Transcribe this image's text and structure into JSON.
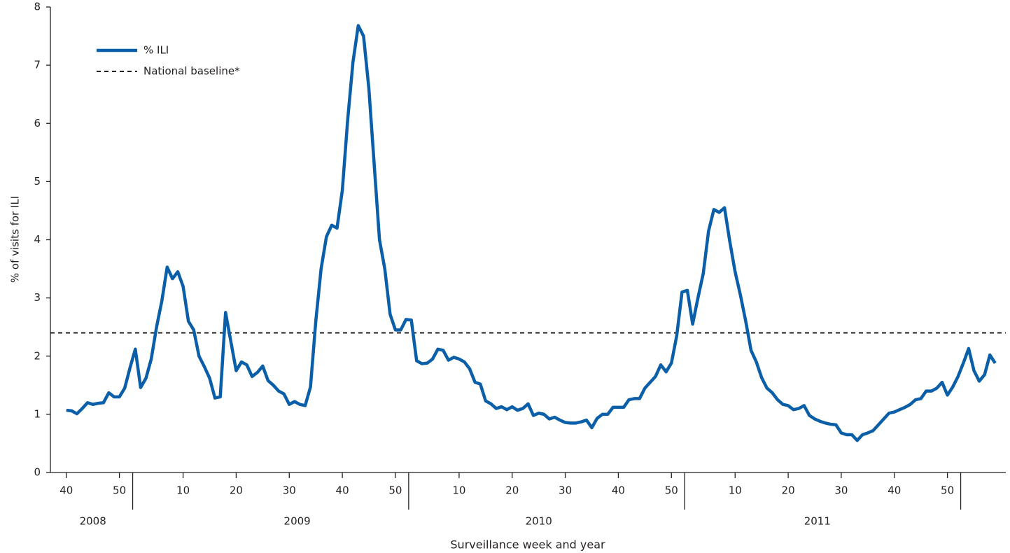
{
  "chart_data": {
    "type": "line",
    "x_title": "Surveillance week and year",
    "y_title": "% of visits for ILI",
    "xlim": [
      -3,
      177
    ],
    "ylim": [
      0,
      8
    ],
    "yticks": [
      0,
      1,
      2,
      3,
      4,
      5,
      6,
      7,
      8
    ],
    "xticks": [
      {
        "value": 0,
        "label": "40"
      },
      {
        "value": 10,
        "label": "50"
      },
      {
        "value": 22,
        "label": "10"
      },
      {
        "value": 32,
        "label": "20"
      },
      {
        "value": 42,
        "label": "30"
      },
      {
        "value": 52,
        "label": "40"
      },
      {
        "value": 62,
        "label": "50"
      },
      {
        "value": 74,
        "label": "10"
      },
      {
        "value": 84,
        "label": "20"
      },
      {
        "value": 94,
        "label": "30"
      },
      {
        "value": 104,
        "label": "40"
      },
      {
        "value": 114,
        "label": "50"
      },
      {
        "value": 126,
        "label": "10"
      },
      {
        "value": 136,
        "label": "20"
      },
      {
        "value": 146,
        "label": "30"
      },
      {
        "value": 156,
        "label": "40"
      },
      {
        "value": 166,
        "label": "50"
      }
    ],
    "year_labels": [
      {
        "value": 5,
        "label": "2008"
      },
      {
        "value": 43.5,
        "label": "2009"
      },
      {
        "value": 89,
        "label": "2010"
      },
      {
        "value": 141.5,
        "label": "2011"
      }
    ],
    "year_breaks": [
      12.5,
      64.5,
      116.5,
      168.5
    ],
    "x": [
      0,
      1,
      2,
      3,
      4,
      5,
      6,
      7,
      8,
      9,
      10,
      11,
      12,
      13,
      14,
      15,
      16,
      17,
      18,
      19,
      20,
      21,
      22,
      23,
      24,
      25,
      26,
      27,
      28,
      29,
      30,
      31,
      32,
      33,
      34,
      35,
      36,
      37,
      38,
      39,
      40,
      41,
      42,
      43,
      44,
      45,
      46,
      47,
      48,
      49,
      50,
      51,
      52,
      53,
      54,
      55,
      56,
      57,
      58,
      59,
      60,
      61,
      62,
      63,
      64,
      65,
      66,
      67,
      68,
      69,
      70,
      71,
      72,
      73,
      74,
      75,
      76,
      77,
      78,
      79,
      80,
      81,
      82,
      83,
      84,
      85,
      86,
      87,
      88,
      89,
      90,
      91,
      92,
      93,
      94,
      95,
      96,
      97,
      98,
      99,
      100,
      101,
      102,
      103,
      104,
      105,
      106,
      107,
      108,
      109,
      110,
      111,
      112,
      113,
      114,
      115,
      116,
      117,
      118,
      119,
      120,
      121,
      122,
      123,
      124,
      125,
      126,
      127,
      128,
      129,
      130,
      131,
      132,
      133,
      134,
      135,
      136,
      137,
      138,
      139,
      140,
      141,
      142,
      143,
      144,
      145,
      146,
      147,
      148,
      149,
      150,
      151,
      152,
      153,
      154,
      155,
      156,
      157,
      158,
      159,
      160,
      161,
      162,
      163,
      164,
      165,
      166,
      167,
      168,
      169,
      170,
      171,
      172,
      173,
      174,
      175
    ],
    "series": [
      {
        "name": "% ILI",
        "color": "#0b5fa8",
        "values": [
          1.07,
          1.06,
          1.01,
          1.1,
          1.2,
          1.17,
          1.19,
          1.2,
          1.37,
          1.3,
          1.3,
          1.45,
          1.8,
          2.12,
          1.46,
          1.62,
          1.95,
          2.5,
          2.95,
          3.53,
          3.33,
          3.45,
          3.2,
          2.6,
          2.45,
          2.0,
          1.82,
          1.62,
          1.28,
          1.3,
          2.75,
          2.25,
          1.75,
          1.9,
          1.85,
          1.65,
          1.72,
          1.83,
          1.58,
          1.5,
          1.4,
          1.35,
          1.17,
          1.22,
          1.17,
          1.15,
          1.47,
          2.6,
          3.5,
          4.05,
          4.25,
          4.2,
          4.85,
          6.05,
          7.05,
          7.68,
          7.5,
          6.6,
          5.3,
          4.0,
          3.5,
          2.72,
          2.45,
          2.45,
          2.63,
          2.62,
          1.92,
          1.87,
          1.88,
          1.95,
          2.12,
          2.1,
          1.93,
          1.98,
          1.95,
          1.9,
          1.78,
          1.55,
          1.52,
          1.23,
          1.18,
          1.1,
          1.13,
          1.08,
          1.13,
          1.07,
          1.1,
          1.18,
          0.98,
          1.02,
          1.0,
          0.92,
          0.95,
          0.9,
          0.86,
          0.85,
          0.85,
          0.87,
          0.9,
          0.77,
          0.93,
          1.0,
          1.0,
          1.12,
          1.12,
          1.12,
          1.25,
          1.27,
          1.27,
          1.45,
          1.55,
          1.65,
          1.85,
          1.73,
          1.88,
          2.35,
          3.1,
          3.13,
          2.55,
          3.0,
          3.42,
          4.15,
          4.52,
          4.47,
          4.55,
          3.97,
          3.45,
          3.05,
          2.6,
          2.1,
          1.9,
          1.63,
          1.45,
          1.37,
          1.25,
          1.17,
          1.15,
          1.08,
          1.1,
          1.15,
          0.98,
          0.92,
          0.88,
          0.85,
          0.83,
          0.82,
          0.68,
          0.65,
          0.65,
          0.55,
          0.65,
          0.68,
          0.72,
          0.82,
          0.92,
          1.02,
          1.04,
          1.08,
          1.12,
          1.17,
          1.25,
          1.27,
          1.4,
          1.4,
          1.45,
          1.55,
          1.33,
          1.47,
          1.65,
          1.88,
          2.13,
          1.75,
          1.57,
          1.68,
          2.02,
          1.88
        ]
      }
    ],
    "baseline": {
      "name": "National baseline*",
      "value": 2.4,
      "color": "#231f20"
    }
  }
}
